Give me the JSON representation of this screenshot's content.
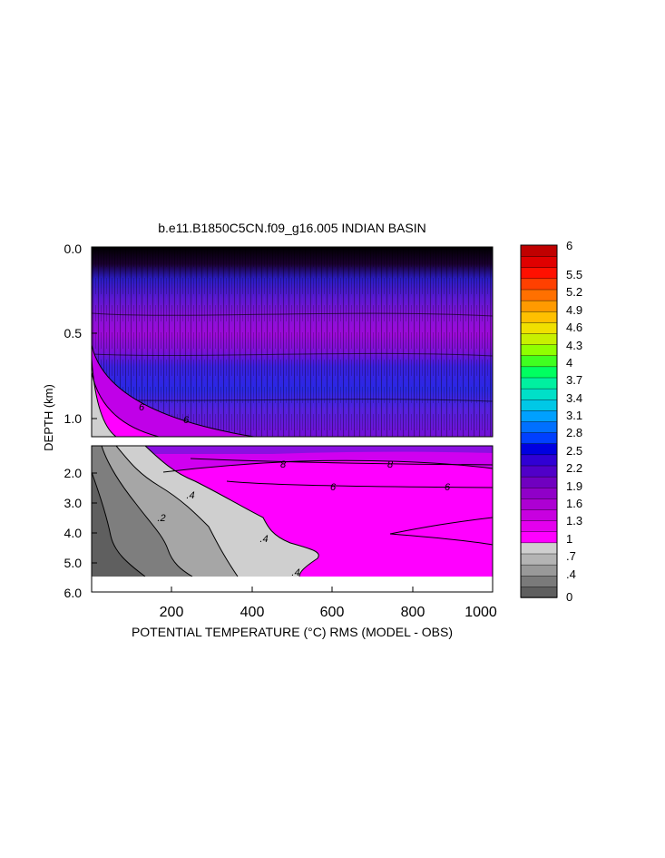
{
  "chart_data": {
    "type": "heatmap",
    "title": "b.e11.B1850C5CN.f09_g16.005 INDIAN BASIN",
    "xlabel": "POTENTIAL TEMPERATURE (°C) RMS (MODEL - OBS)",
    "ylabel": "DEPTH (km)",
    "xlim": [
      0,
      1000
    ],
    "x_ticks": [
      "200",
      "400",
      "600",
      "800",
      "1000"
    ],
    "y_ticks_upper": [
      "0.0",
      "0.5",
      "1.0"
    ],
    "y_ticks_lower": [
      "2.0",
      "3.0",
      "4.0",
      "5.0",
      "6.0"
    ],
    "ylim_upper": [
      0,
      1.1
    ],
    "ylim_lower": [
      1.1,
      6.0
    ],
    "contour_labels": [
      "6",
      "6",
      "8",
      "8",
      "6",
      "6",
      ".4",
      ".2",
      ".4",
      ".4"
    ],
    "colorbar": {
      "labels": [
        "6",
        "5.5",
        "5.2",
        "4.9",
        "4.6",
        "4.3",
        "4",
        "3.7",
        "3.4",
        "3.1",
        "2.8",
        "2.5",
        "2.2",
        "1.9",
        "1.6",
        "1.3",
        "1",
        ".7",
        ".4",
        "0"
      ],
      "colors": [
        "#5f5f5f",
        "#7a7a7a",
        "#999999",
        "#b4b4b4",
        "#cfcfcf",
        "#ff00ff",
        "#e400ee",
        "#c800e0",
        "#ad00d3",
        "#9000c8",
        "#7000c0",
        "#5000c8",
        "#3000d4",
        "#0000e0",
        "#0040ff",
        "#0070ff",
        "#00a0ff",
        "#00c8e6",
        "#00e0c8",
        "#00f0a0",
        "#00ff60",
        "#40ff20",
        "#90ff00",
        "#c8f000",
        "#f0e000",
        "#ffc000",
        "#ff9a00",
        "#ff7000",
        "#ff4000",
        "#ff1000",
        "#e00000",
        "#c00000"
      ]
    }
  }
}
